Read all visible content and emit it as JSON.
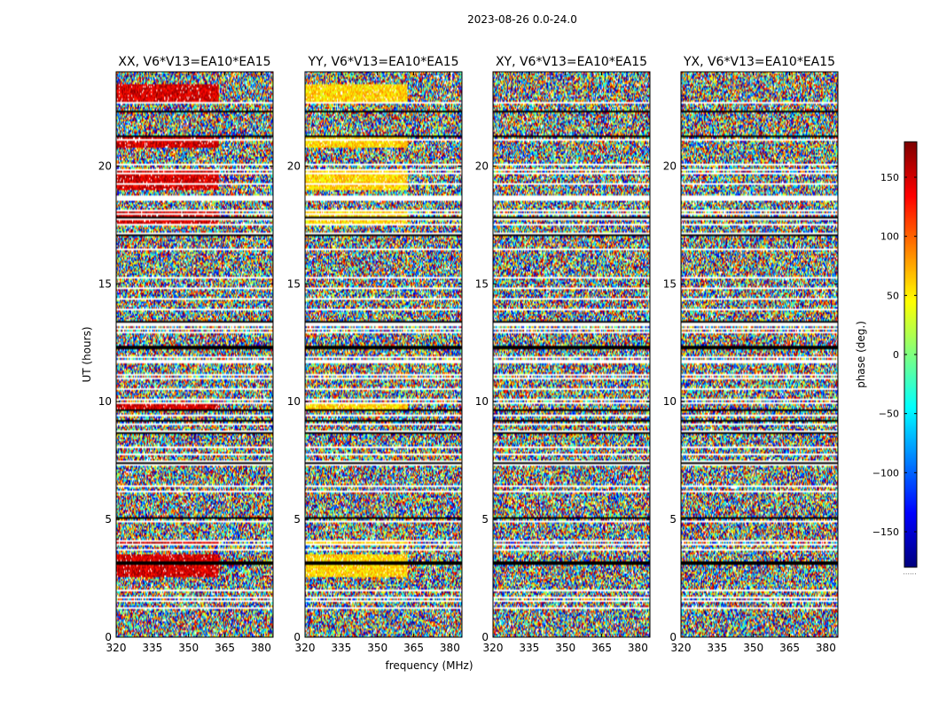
{
  "figure": {
    "suptitle": "2023-08-26 0.0-24.0",
    "xlabel": "frequency (MHz)",
    "ylabel": "UT (hours)",
    "colorbar_label": "phase (deg.)",
    "colorbar_min_label": "......"
  },
  "chart_data": [
    {
      "type": "heatmap",
      "title": "XX, V6*V13=EA10*EA15",
      "xlabel": "frequency (MHz)",
      "ylabel": "UT (hours)",
      "xlim": [
        320,
        385
      ],
      "ylim": [
        0,
        24
      ],
      "xticks": [
        320,
        335,
        350,
        365,
        380
      ],
      "yticks": [
        0,
        5,
        10,
        15,
        20
      ],
      "zlim": [
        -180,
        180
      ],
      "colormap": "jet",
      "pattern": "coherent-red",
      "coherent_phase_deg": 150
    },
    {
      "type": "heatmap",
      "title": "YY, V6*V13=EA10*EA15",
      "xlabel": "",
      "ylabel": "",
      "xlim": [
        320,
        385
      ],
      "ylim": [
        0,
        24
      ],
      "xticks": [
        320,
        335,
        350,
        365,
        380
      ],
      "yticks": [
        0,
        5,
        10,
        15,
        20
      ],
      "zlim": [
        -180,
        180
      ],
      "colormap": "jet",
      "pattern": "coherent-yellow",
      "coherent_phase_deg": 60
    },
    {
      "type": "heatmap",
      "title": "XY, V6*V13=EA10*EA15",
      "xlabel": "",
      "ylabel": "",
      "xlim": [
        320,
        385
      ],
      "ylim": [
        0,
        24
      ],
      "xticks": [
        320,
        335,
        350,
        365,
        380
      ],
      "yticks": [
        0,
        5,
        10,
        15,
        20
      ],
      "zlim": [
        -180,
        180
      ],
      "colormap": "jet",
      "pattern": "noise"
    },
    {
      "type": "heatmap",
      "title": "YX, V6*V13=EA10*EA15",
      "xlabel": "",
      "ylabel": "",
      "xlim": [
        320,
        385
      ],
      "ylim": [
        0,
        24
      ],
      "xticks": [
        320,
        335,
        350,
        365,
        380
      ],
      "yticks": [
        0,
        5,
        10,
        15,
        20
      ],
      "zlim": [
        -180,
        180
      ],
      "colormap": "jet",
      "pattern": "noise"
    }
  ],
  "colorbar": {
    "zlim": [
      -180,
      180
    ],
    "ticks": [
      -150,
      -100,
      -50,
      0,
      50,
      100,
      150
    ],
    "colormap": "jet"
  }
}
